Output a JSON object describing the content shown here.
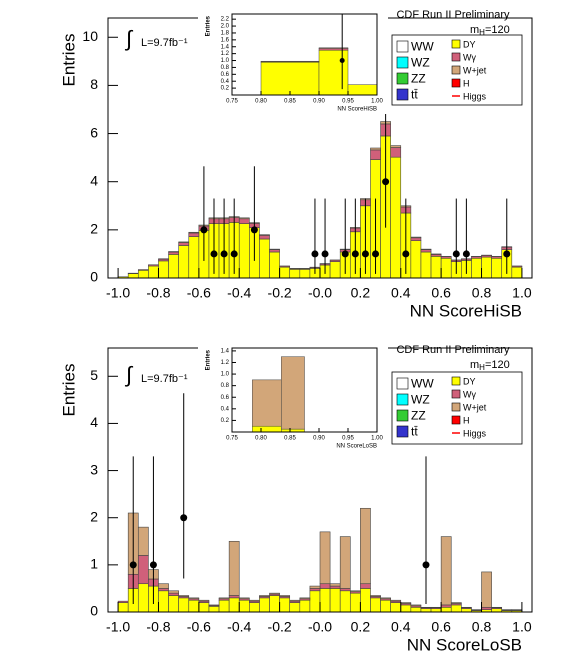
{
  "chart_data": [
    {
      "type": "histogram",
      "title": "CDF Run II Preliminary",
      "xlabel": "NN ScoreHiSB",
      "ylabel": "Entries",
      "integral": "∫",
      "luminosity": "L=9.7fb⁻¹",
      "mass_label": [
        "m",
        "H",
        "=120"
      ],
      "xlim": [
        -1.05,
        1.05
      ],
      "ylim": [
        0,
        10.8
      ],
      "xticks": [
        {
          "value": -1,
          "label": "-1.0"
        },
        -0.8,
        -0.6,
        -0.4,
        -0.2,
        {
          "value": 0,
          "label": "-0.0"
        },
        0.2,
        0.4,
        0.6,
        0.8,
        {
          "value": 1,
          "label": "1.0"
        }
      ],
      "yticks": [
        0,
        2,
        4,
        6,
        8,
        10
      ],
      "bins": [
        -1,
        -0.95,
        -0.9,
        -0.85,
        -0.8,
        -0.75,
        -0.7,
        -0.65,
        -0.6,
        -0.55,
        -0.5,
        -0.45,
        -0.4,
        -0.35,
        -0.3,
        -0.25,
        -0.2,
        -0.15,
        -0.1,
        -0.05,
        0,
        0.05,
        0.1,
        0.15,
        0.2,
        0.25,
        0.3,
        0.35,
        0.4,
        0.45,
        0.5,
        0.55,
        0.6,
        0.65,
        0.7,
        0.75,
        0.8,
        0.85,
        0.9,
        0.95,
        1
      ],
      "series": [
        {
          "name": "WW",
          "color": "#ffffff"
        },
        {
          "name": "WZ",
          "color": "#00ffff"
        },
        {
          "name": "ZZ",
          "color": "#33cc33"
        },
        {
          "name": "tt̄",
          "color": "#3333cc"
        },
        {
          "name": "DY",
          "color": "#ffff00",
          "values": [
            0.05,
            0.18,
            0.32,
            0.5,
            0.71,
            0.98,
            1.35,
            1.72,
            1.98,
            2.26,
            2.26,
            2.31,
            2.26,
            2.09,
            1.62,
            1.08,
            0.45,
            0.36,
            0.36,
            0.4,
            0.54,
            0.68,
            1.08,
            1.92,
            3.0,
            4.92,
            5.9,
            5.02,
            2.7,
            1.55,
            1.08,
            0.9,
            0.82,
            0.68,
            0.73,
            0.82,
            0.87,
            0.82,
            1.18,
            0.45
          ]
        },
        {
          "name": "Wγ",
          "color": "#d0607a",
          "values": [
            0,
            0.02,
            0.03,
            0.05,
            0.07,
            0.1,
            0.12,
            0.15,
            0.18,
            0.2,
            0.2,
            0.2,
            0.2,
            0.18,
            0.15,
            0.1,
            0.04,
            0.03,
            0.03,
            0.04,
            0.05,
            0.06,
            0.1,
            0.15,
            0.25,
            0.4,
            0.5,
            0.4,
            0.25,
            0.12,
            0.1,
            0.08,
            0.07,
            0.06,
            0.06,
            0.07,
            0.07,
            0.07,
            0.1,
            0.04
          ]
        },
        {
          "name": "W+jet",
          "color": "#d2a679",
          "values": [
            0,
            0,
            0,
            0,
            0.02,
            0.02,
            0.03,
            0.03,
            0.04,
            0.04,
            0.04,
            0.04,
            0.04,
            0.03,
            0.03,
            0.02,
            0.01,
            0.01,
            0.01,
            0.01,
            0.01,
            0.01,
            0.02,
            0.03,
            0.05,
            0.08,
            0.1,
            0.08,
            0.05,
            0.03,
            0.02,
            0.02,
            0.01,
            0.01,
            0.01,
            0.01,
            0.01,
            0.01,
            0.02,
            0.01
          ]
        },
        {
          "name": "H",
          "color": "#ff0000"
        },
        {
          "name": "Higgs",
          "color": "#ff0000",
          "marker": "line"
        }
      ],
      "data": {
        "x": [
          -0.575,
          -0.525,
          -0.475,
          -0.425,
          -0.325,
          -0.025,
          0.025,
          0.125,
          0.175,
          0.225,
          0.275,
          0.325,
          0.425,
          0.675,
          0.725,
          0.925
        ],
        "values": [
          2,
          1,
          1,
          1,
          2,
          1,
          1,
          1,
          1,
          1,
          1,
          4,
          1,
          1,
          1,
          1
        ],
        "err_low": [
          1.29,
          0.83,
          0.83,
          0.83,
          1.29,
          0.83,
          0.83,
          0.83,
          0.83,
          0.83,
          0.83,
          1.91,
          0.83,
          0.83,
          0.83,
          0.83
        ],
        "err_high": [
          2.64,
          2.3,
          2.3,
          2.3,
          2.64,
          2.3,
          2.3,
          2.3,
          2.3,
          2.3,
          2.3,
          3.16,
          2.3,
          2.3,
          2.3,
          2.3
        ]
      },
      "inset": {
        "type": "histogram",
        "xlabel": "NN ScoreHiSB",
        "ylabel": "Entries",
        "xlim": [
          0.75,
          1.0
        ],
        "ylim": [
          0,
          2.35
        ],
        "xticks": [
          0.75,
          {
            "value": 0.8,
            "label": "0.80"
          },
          0.85,
          {
            "value": 0.9,
            "label": "0.90"
          },
          0.95,
          {
            "value": 1,
            "label": "1.00"
          }
        ],
        "yticks": [
          0.2,
          0.4,
          0.6,
          0.8,
          {
            "value": 1,
            "label": "1.0"
          },
          1.2,
          1.4,
          1.6,
          1.8,
          {
            "value": 2,
            "label": "2.0"
          },
          2.2
        ],
        "bins": [
          0.8,
          0.9,
          0.95,
          1.0
        ],
        "series": [
          {
            "color": "#ffff00",
            "values": [
              0.95,
              1.3,
              0.3
            ]
          },
          {
            "color": "#d0607a",
            "values": [
              0.02,
              0.05,
              0
            ]
          },
          {
            "color": "#d2a679",
            "values": [
              0.01,
              0.02,
              0
            ]
          }
        ],
        "data": {
          "x": [
            0.94
          ],
          "values": [
            1
          ],
          "err_low": [
            0.83
          ],
          "err_high": [
            2.3
          ]
        }
      }
    },
    {
      "type": "histogram",
      "title": "CDF Run II Preliminary",
      "xlabel": "NN ScoreLoSB",
      "ylabel": "Entries",
      "integral": "∫",
      "luminosity": "L=9.7fb⁻¹",
      "mass_label": [
        "m",
        "H",
        "=120"
      ],
      "xlim": [
        -1.05,
        1.05
      ],
      "ylim": [
        0,
        5.6
      ],
      "xticks": [
        {
          "value": -1,
          "label": "-1.0"
        },
        -0.8,
        -0.6,
        -0.4,
        -0.2,
        {
          "value": 0,
          "label": "-0.0"
        },
        0.2,
        0.4,
        0.6,
        0.8,
        {
          "value": 1,
          "label": "1.0"
        }
      ],
      "yticks": [
        0,
        1,
        2,
        3,
        4,
        5
      ],
      "bins": [
        -1,
        -0.95,
        -0.9,
        -0.85,
        -0.8,
        -0.75,
        -0.7,
        -0.65,
        -0.6,
        -0.55,
        -0.5,
        -0.45,
        -0.4,
        -0.35,
        -0.3,
        -0.25,
        -0.2,
        -0.15,
        -0.1,
        -0.05,
        0,
        0.05,
        0.1,
        0.15,
        0.2,
        0.25,
        0.3,
        0.35,
        0.4,
        0.45,
        0.5,
        0.55,
        0.6,
        0.65,
        0.7,
        0.75,
        0.8,
        0.85,
        0.9,
        0.95,
        1
      ],
      "series": [
        {
          "name": "WW",
          "color": "#ffffff"
        },
        {
          "name": "WZ",
          "color": "#00ffff"
        },
        {
          "name": "ZZ",
          "color": "#33cc33"
        },
        {
          "name": "tt̄",
          "color": "#3333cc"
        },
        {
          "name": "DY",
          "color": "#ffff00",
          "values": [
            0.2,
            0.5,
            0.6,
            0.55,
            0.45,
            0.35,
            0.3,
            0.25,
            0.2,
            0.12,
            0.25,
            0.3,
            0.25,
            0.2,
            0.3,
            0.35,
            0.3,
            0.2,
            0.25,
            0.45,
            0.5,
            0.5,
            0.45,
            0.4,
            0.5,
            0.3,
            0.25,
            0.2,
            0.15,
            0.1,
            0.07,
            0.07,
            0.1,
            0.15,
            0.07,
            0.03,
            0.05,
            0.07,
            0.03,
            0.03
          ]
        },
        {
          "name": "Wγ",
          "color": "#d0607a",
          "values": [
            0.03,
            0.3,
            0.6,
            0.15,
            0.05,
            0.05,
            0.03,
            0.03,
            0.03,
            0.02,
            0.03,
            0.05,
            0.03,
            0.03,
            0.03,
            0.03,
            0.03,
            0.03,
            0.03,
            0.05,
            0.1,
            0.05,
            0.05,
            0.03,
            0.1,
            0.03,
            0.03,
            0.03,
            0.03,
            0.03,
            0.02,
            0.02,
            0.05,
            0.03,
            0.02,
            0.01,
            0.05,
            0.02,
            0.01,
            0.01
          ]
        },
        {
          "name": "W+jet",
          "color": "#d2a679",
          "values": [
            0,
            1.3,
            0.6,
            0.2,
            0.1,
            0.05,
            0.02,
            0.02,
            0.02,
            0.01,
            0.02,
            1.15,
            0.02,
            0.02,
            0.02,
            0.02,
            0.02,
            0.02,
            0.02,
            0.05,
            1.1,
            0.05,
            1.1,
            0.02,
            1.6,
            0.02,
            0.02,
            0.02,
            0.02,
            0.02,
            0.01,
            0.01,
            1.45,
            0.02,
            0.01,
            0.01,
            0.75,
            0.01,
            0.01,
            0.01
          ]
        },
        {
          "name": "H",
          "color": "#ff0000"
        },
        {
          "name": "Higgs",
          "color": "#ff0000",
          "marker": "line"
        }
      ],
      "data": {
        "x": [
          -0.925,
          -0.825,
          -0.675,
          0.525
        ],
        "values": [
          1,
          1,
          2,
          1
        ],
        "err_low": [
          0.83,
          0.83,
          1.29,
          0.83
        ],
        "err_high": [
          2.3,
          2.3,
          2.64,
          2.3
        ]
      },
      "inset": {
        "type": "histogram",
        "xlabel": "NN ScoreLoSB",
        "ylabel": "Entries",
        "xlim": [
          0.75,
          1.0
        ],
        "ylim": [
          0,
          1.45
        ],
        "xticks": [
          0.75,
          {
            "value": 0.8,
            "label": "0.80"
          },
          0.85,
          {
            "value": 0.9,
            "label": "0.90"
          },
          0.95,
          {
            "value": 1,
            "label": "1.00"
          }
        ],
        "yticks": [
          0.2,
          0.4,
          0.6,
          0.8,
          {
            "value": 1,
            "label": "1.0"
          },
          1.2,
          1.4
        ],
        "bins": [
          0.785,
          0.835,
          0.875
        ],
        "series": [
          {
            "color": "#ffff00",
            "values": [
              0.1,
              0.05
            ]
          },
          {
            "color": "#d0607a",
            "values": [
              0,
              0
            ]
          },
          {
            "color": "#d2a679",
            "values": [
              0.8,
              1.25
            ]
          }
        ]
      }
    }
  ]
}
